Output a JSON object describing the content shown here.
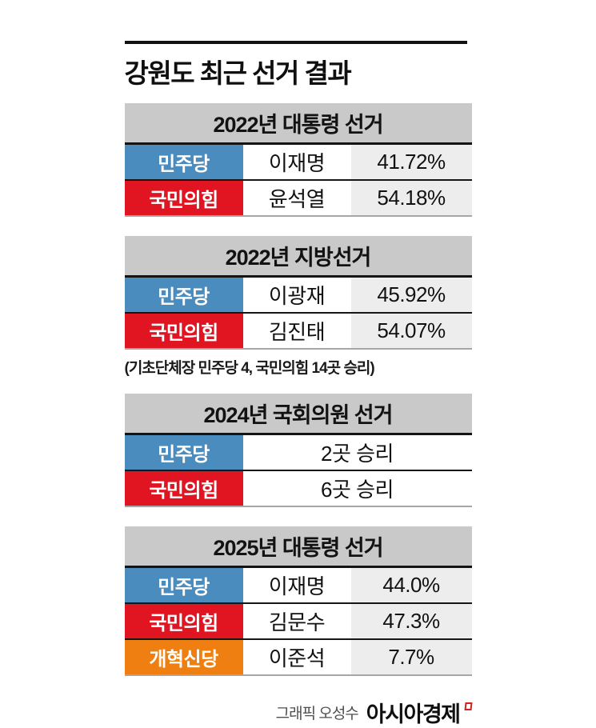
{
  "title": "강원도 최근 선거 결과",
  "colors": {
    "democratic_blue": "#4a8cbe",
    "ppp_red": "#e11422",
    "reform_orange": "#ee7f10",
    "table_header_gray": "#c9c9c9",
    "value_column_gray": "#ededed"
  },
  "chart_data": [
    {
      "type": "table",
      "header": "2022년 대통령 선거",
      "rows": [
        {
          "party": "민주당",
          "color": "#4a8cbe",
          "candidate": "이재명",
          "value": "41.72%"
        },
        {
          "party": "국민의힘",
          "color": "#e11422",
          "candidate": "윤석열",
          "value": "54.18%"
        }
      ]
    },
    {
      "type": "table",
      "header": "2022년 지방선거",
      "rows": [
        {
          "party": "민주당",
          "color": "#4a8cbe",
          "candidate": "이광재",
          "value": "45.92%"
        },
        {
          "party": "국민의힘",
          "color": "#e11422",
          "candidate": "김진태",
          "value": "54.07%"
        }
      ],
      "note": "(기초단체장 민주당 4, 국민의힘 14곳 승리)"
    },
    {
      "type": "table",
      "header": "2024년 국회의원 선거",
      "rows": [
        {
          "party": "민주당",
          "color": "#4a8cbe",
          "result": "2곳 승리"
        },
        {
          "party": "국민의힘",
          "color": "#e11422",
          "result": "6곳 승리"
        }
      ]
    },
    {
      "type": "table",
      "header": "2025년 대통령 선거",
      "rows": [
        {
          "party": "민주당",
          "color": "#4a8cbe",
          "candidate": "이재명",
          "value": "44.0%"
        },
        {
          "party": "국민의힘",
          "color": "#e11422",
          "candidate": "김문수",
          "value": "47.3%"
        },
        {
          "party": "개혁신당",
          "color": "#ee7f10",
          "candidate": "이준석",
          "value": "7.7%"
        }
      ]
    }
  ],
  "footer": {
    "credit": "그래픽 오성수",
    "brand": "아시아경제"
  }
}
